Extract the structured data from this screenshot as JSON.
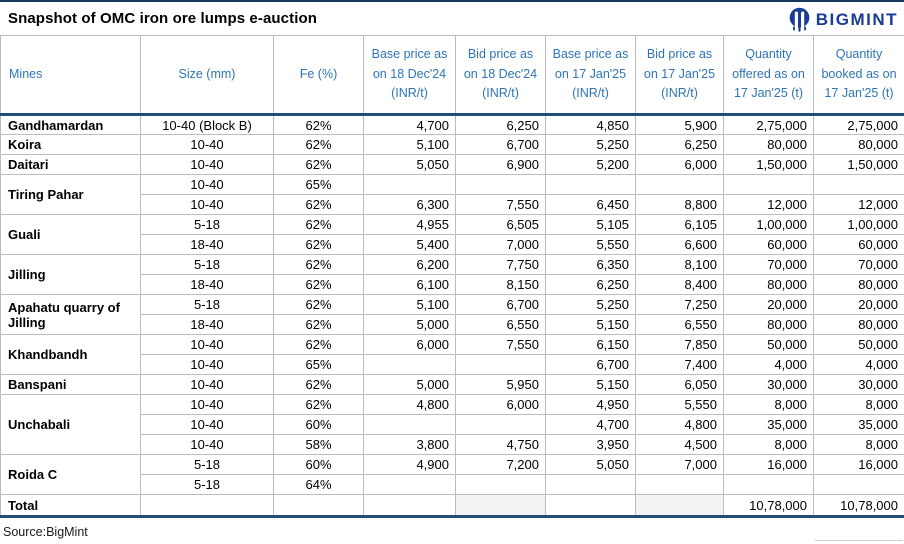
{
  "title": "Snapshot of OMC iron ore lumps e-auction",
  "logo": {
    "icon": "bigmint-owl-icon",
    "text": "BIGMINT"
  },
  "source": "Source:BigMint",
  "colors": {
    "accent_navy": "#1F4E79",
    "logo_navy": "#1B3C94",
    "header_text_blue": "#2E74B5",
    "grid_border": "#BDBDBD",
    "total_cell_shade": "#F2F2F2"
  },
  "table": {
    "headers": [
      "Mines",
      "Size (mm)",
      "Fe (%)",
      "Base price as on 18 Dec'24 (INR/t)",
      "Bid price as on 18 Dec'24 (INR/t)",
      "Base price as on 17 Jan'25 (INR/t)",
      "Bid price as on 17 Jan'25 (INR/t)",
      "Quantity offered as on 17 Jan'25 (t)",
      "Quantity booked as on 17 Jan'25 (t)"
    ],
    "groups": [
      {
        "mine": "Gandhamardan",
        "rows": [
          {
            "size": "10-40 (Block B)",
            "fe": "62%",
            "base_dec": "4,700",
            "bid_dec": "6,250",
            "base_jan": "4,850",
            "bid_jan": "5,900",
            "qty_off": "2,75,000",
            "qty_book": "2,75,000"
          }
        ]
      },
      {
        "mine": "Koira",
        "rows": [
          {
            "size": "10-40",
            "fe": "62%",
            "base_dec": "5,100",
            "bid_dec": "6,700",
            "base_jan": "5,250",
            "bid_jan": "6,250",
            "qty_off": "80,000",
            "qty_book": "80,000"
          }
        ]
      },
      {
        "mine": "Daitari",
        "rows": [
          {
            "size": "10-40",
            "fe": "62%",
            "base_dec": "5,050",
            "bid_dec": "6,900",
            "base_jan": "5,200",
            "bid_jan": "6,000",
            "qty_off": "1,50,000",
            "qty_book": "1,50,000"
          }
        ]
      },
      {
        "mine": "Tiring Pahar",
        "rows": [
          {
            "size": "10-40",
            "fe": "65%",
            "base_dec": "",
            "bid_dec": "",
            "base_jan": "",
            "bid_jan": "",
            "qty_off": "",
            "qty_book": ""
          },
          {
            "size": "10-40",
            "fe": "62%",
            "base_dec": "6,300",
            "bid_dec": "7,550",
            "base_jan": "6,450",
            "bid_jan": "8,800",
            "qty_off": "12,000",
            "qty_book": "12,000"
          }
        ]
      },
      {
        "mine": "Guali",
        "rows": [
          {
            "size": "5-18",
            "fe": "62%",
            "base_dec": "4,955",
            "bid_dec": "6,505",
            "base_jan": "5,105",
            "bid_jan": "6,105",
            "qty_off": "1,00,000",
            "qty_book": "1,00,000"
          },
          {
            "size": "18-40",
            "fe": "62%",
            "base_dec": "5,400",
            "bid_dec": "7,000",
            "base_jan": "5,550",
            "bid_jan": "6,600",
            "qty_off": "60,000",
            "qty_book": "60,000"
          }
        ]
      },
      {
        "mine": "Jilling",
        "rows": [
          {
            "size": "5-18",
            "fe": "62%",
            "base_dec": "6,200",
            "bid_dec": "7,750",
            "base_jan": "6,350",
            "bid_jan": "8,100",
            "qty_off": "70,000",
            "qty_book": "70,000"
          },
          {
            "size": "18-40",
            "fe": "62%",
            "base_dec": "6,100",
            "bid_dec": "8,150",
            "base_jan": "6,250",
            "bid_jan": "8,400",
            "qty_off": "80,000",
            "qty_book": "80,000"
          }
        ]
      },
      {
        "mine": "Apahatu quarry of Jilling",
        "rows": [
          {
            "size": "5-18",
            "fe": "62%",
            "base_dec": "5,100",
            "bid_dec": "6,700",
            "base_jan": "5,250",
            "bid_jan": "7,250",
            "qty_off": "20,000",
            "qty_book": "20,000"
          },
          {
            "size": "18-40",
            "fe": "62%",
            "base_dec": "5,000",
            "bid_dec": "6,550",
            "base_jan": "5,150",
            "bid_jan": "6,550",
            "qty_off": "80,000",
            "qty_book": "80,000"
          }
        ]
      },
      {
        "mine": "Khandbandh",
        "rows": [
          {
            "size": "10-40",
            "fe": "62%",
            "base_dec": "6,000",
            "bid_dec": "7,550",
            "base_jan": "6,150",
            "bid_jan": "7,850",
            "qty_off": "50,000",
            "qty_book": "50,000"
          },
          {
            "size": "10-40",
            "fe": "65%",
            "base_dec": "",
            "bid_dec": "",
            "base_jan": "6,700",
            "bid_jan": "7,400",
            "qty_off": "4,000",
            "qty_book": "4,000"
          }
        ]
      },
      {
        "mine": "Banspani",
        "rows": [
          {
            "size": "10-40",
            "fe": "62%",
            "base_dec": "5,000",
            "bid_dec": "5,950",
            "base_jan": "5,150",
            "bid_jan": "6,050",
            "qty_off": "30,000",
            "qty_book": "30,000"
          }
        ]
      },
      {
        "mine": "Unchabali",
        "rows": [
          {
            "size": "10-40",
            "fe": "62%",
            "base_dec": "4,800",
            "bid_dec": "6,000",
            "base_jan": "4,950",
            "bid_jan": "5,550",
            "qty_off": "8,000",
            "qty_book": "8,000"
          },
          {
            "size": "10-40",
            "fe": "60%",
            "base_dec": "",
            "bid_dec": "",
            "base_jan": "4,700",
            "bid_jan": "4,800",
            "qty_off": "35,000",
            "qty_book": "35,000"
          },
          {
            "size": "10-40",
            "fe": "58%",
            "base_dec": "3,800",
            "bid_dec": "4,750",
            "base_jan": "3,950",
            "bid_jan": "4,500",
            "qty_off": "8,000",
            "qty_book": "8,000"
          }
        ]
      },
      {
        "mine": "Roida C",
        "rows": [
          {
            "size": "5-18",
            "fe": "60%",
            "base_dec": "4,900",
            "bid_dec": "7,200",
            "base_jan": "5,050",
            "bid_jan": "7,000",
            "qty_off": "16,000",
            "qty_book": "16,000"
          },
          {
            "size": "5-18",
            "fe": "64%",
            "base_dec": "",
            "bid_dec": "",
            "base_jan": "",
            "bid_jan": "",
            "qty_off": "",
            "qty_book": ""
          }
        ]
      }
    ],
    "total": {
      "label": "Total",
      "qty_off": "10,78,000",
      "qty_book": "10,78,000"
    }
  }
}
